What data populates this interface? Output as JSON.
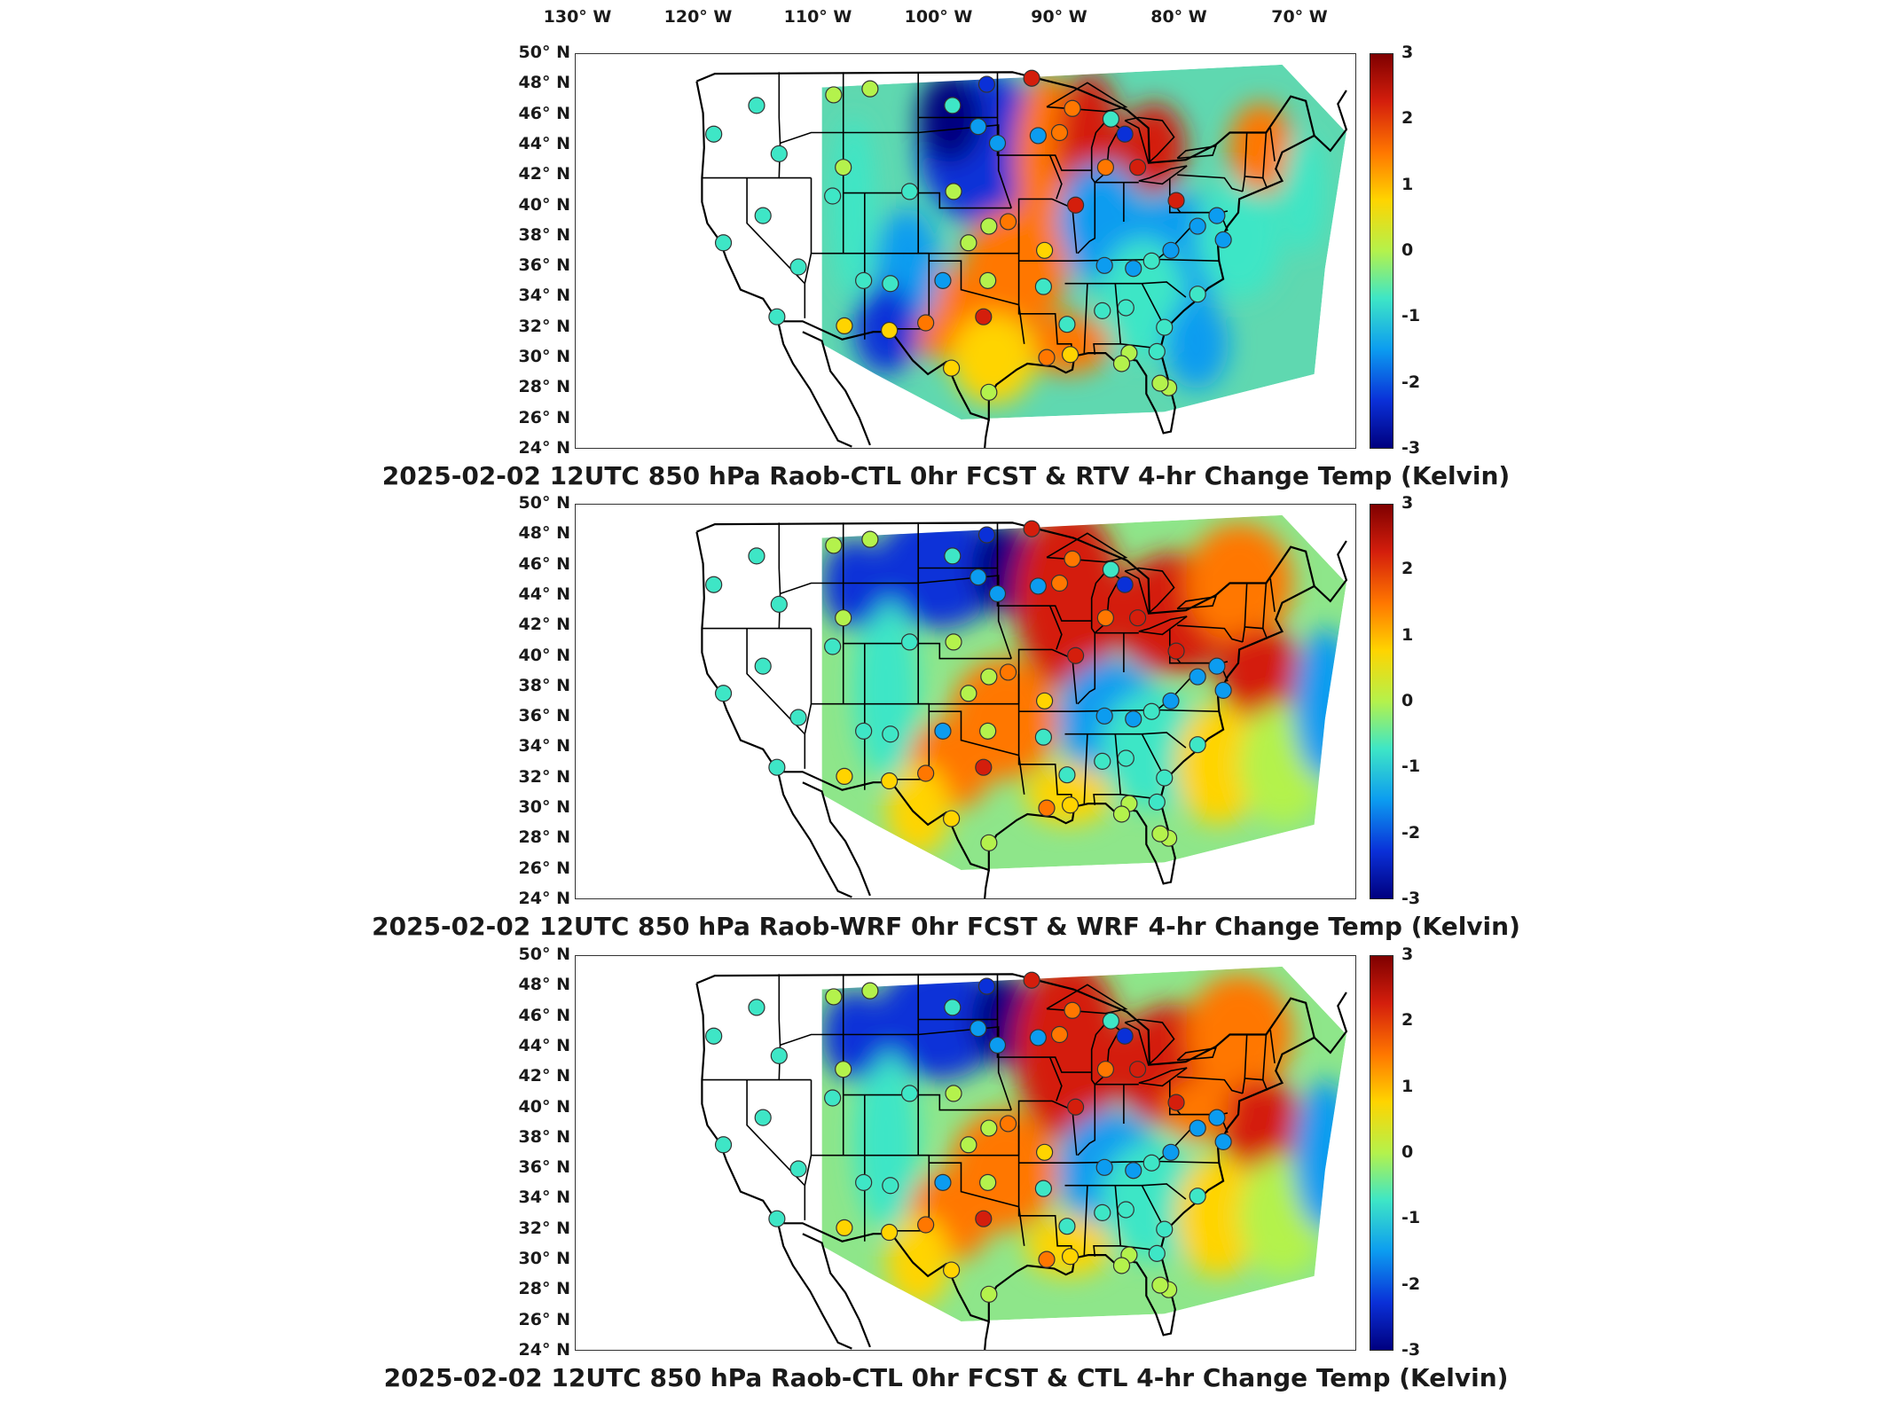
{
  "longitude_labels": [
    "130° W",
    "120° W",
    "110° W",
    "100° W",
    "90° W",
    "80° W",
    "70° W"
  ],
  "latitude_labels": [
    "50° N",
    "48° N",
    "46° N",
    "44° N",
    "42° N",
    "40° N",
    "38° N",
    "36° N",
    "34° N",
    "32° N",
    "30° N",
    "28° N",
    "26° N",
    "24° N"
  ],
  "colorbar": {
    "ticks": [
      "3",
      "2",
      "1",
      "0",
      "-1",
      "-2",
      "-3"
    ],
    "colormap": "jet",
    "colors": [
      "#7f0000",
      "#d41e0c",
      "#ff7700",
      "#ffd400",
      "#b4f24c",
      "#3ee6c6",
      "#0c9cf0",
      "#0a30d8",
      "#00007f"
    ]
  },
  "panels": [
    {
      "title": "2025-02-02 12UTC 850 hPa Raob-CTL 0hr FCST & RTV 4-hr Change Temp (Kelvin)"
    },
    {
      "title": "2025-02-02 12UTC 850 hPa Raob-WRF 0hr FCST & WRF 4-hr Change Temp (Kelvin)"
    },
    {
      "title": "2025-02-02 12UTC 850 hPa Raob-CTL 0hr FCST & CTL 4-hr Change Temp (Kelvin)"
    }
  ]
}
